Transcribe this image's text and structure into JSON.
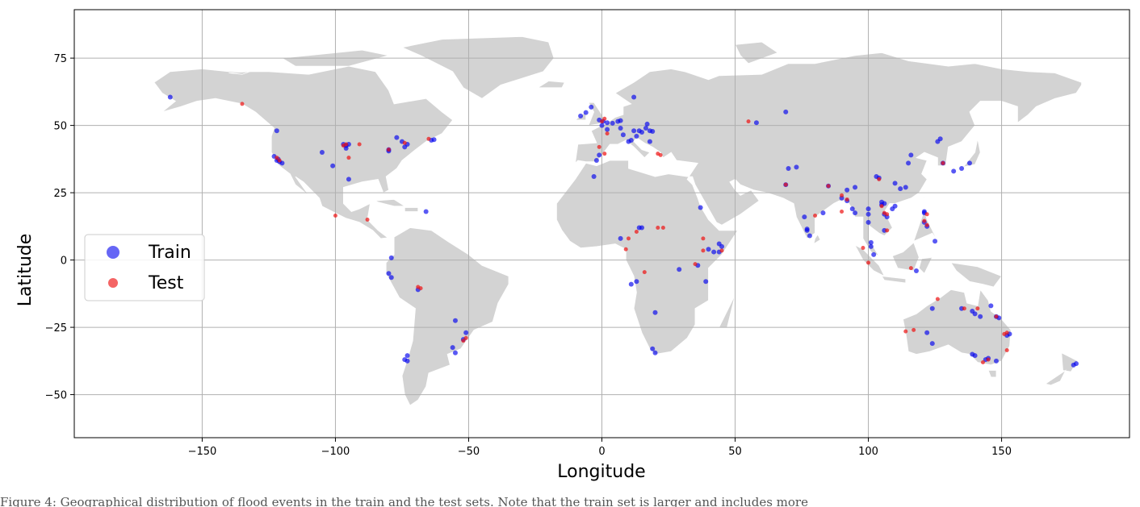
{
  "chart_data": {
    "type": "scatter",
    "title": "",
    "xlabel": "Longitude",
    "ylabel": "Latitude",
    "xlim": [
      -198,
      198
    ],
    "ylim": [
      -66,
      93
    ],
    "xticks": [
      -150,
      -100,
      -50,
      0,
      50,
      100,
      150
    ],
    "yticks": [
      -50,
      -25,
      0,
      25,
      50,
      75
    ],
    "xtick_labels": [
      "−150",
      "−100",
      "−50",
      "0",
      "50",
      "100",
      "150"
    ],
    "ytick_labels": [
      "−50",
      "−25",
      "0",
      "25",
      "50",
      "75"
    ],
    "grid": true,
    "legend_position": "center-left",
    "background_map": "world land masses (light gray) with white country borders",
    "colors": {
      "train": "#0000ee",
      "test": "#ee1111",
      "land": "#d3d3d3",
      "borders": "#ffffff",
      "grid": "#b0b0b0"
    },
    "series": [
      {
        "name": "Train",
        "color": "#0000ee",
        "points": [
          [
            -162,
            60.5
          ],
          [
            -122,
            48
          ],
          [
            -123,
            38.5
          ],
          [
            -121.5,
            37.5
          ],
          [
            -122,
            37
          ],
          [
            -121,
            36.5
          ],
          [
            -120,
            36
          ],
          [
            -105,
            40
          ],
          [
            -101,
            35
          ],
          [
            -97,
            43
          ],
          [
            -96,
            42.5
          ],
          [
            -95,
            43
          ],
          [
            -96,
            41.5
          ],
          [
            -95,
            30
          ],
          [
            -80,
            40.5
          ],
          [
            -80,
            41
          ],
          [
            -77,
            45.5
          ],
          [
            -75,
            44
          ],
          [
            -73,
            43
          ],
          [
            -74,
            42
          ],
          [
            -64,
            44.5
          ],
          [
            -63,
            44.7
          ],
          [
            -66,
            18
          ],
          [
            -79,
            0.8
          ],
          [
            -80,
            -5
          ],
          [
            -79,
            -6.5
          ],
          [
            -69,
            -11
          ],
          [
            -73,
            -35.5
          ],
          [
            -74,
            -37
          ],
          [
            -73,
            -37.5
          ],
          [
            -56,
            -32.5
          ],
          [
            -55,
            -34.5
          ],
          [
            -55,
            -22.5
          ],
          [
            -51,
            -27
          ],
          [
            -52,
            -29.5
          ],
          [
            -8,
            53.5
          ],
          [
            -6,
            54.8
          ],
          [
            -4,
            56.8
          ],
          [
            -1,
            52
          ],
          [
            0.5,
            51.5
          ],
          [
            2,
            51
          ],
          [
            0,
            50
          ],
          [
            -1,
            39
          ],
          [
            -2,
            37
          ],
          [
            -3,
            31
          ],
          [
            2,
            48.5
          ],
          [
            4,
            50.8
          ],
          [
            6,
            51.5
          ],
          [
            7,
            51.8
          ],
          [
            7,
            49
          ],
          [
            8,
            46.5
          ],
          [
            10,
            44
          ],
          [
            11,
            44.5
          ],
          [
            12,
            48
          ],
          [
            13,
            46
          ],
          [
            14,
            48
          ],
          [
            15,
            47.5
          ],
          [
            17,
            50.5
          ],
          [
            16.5,
            49
          ],
          [
            18,
            48
          ],
          [
            19,
            47.8
          ],
          [
            18,
            44
          ],
          [
            12,
            60.5
          ],
          [
            14,
            12
          ],
          [
            15,
            12
          ],
          [
            7,
            8
          ],
          [
            13,
            -8
          ],
          [
            11,
            -9
          ],
          [
            20,
            -19.5
          ],
          [
            19,
            -33
          ],
          [
            20,
            -34.5
          ],
          [
            29,
            -3.5
          ],
          [
            36,
            -2
          ],
          [
            39,
            -8
          ],
          [
            40,
            4
          ],
          [
            42,
            3
          ],
          [
            44,
            3
          ],
          [
            44,
            6
          ],
          [
            45,
            5
          ],
          [
            37,
            19.5
          ],
          [
            58,
            51
          ],
          [
            69,
            55
          ],
          [
            70,
            34
          ],
          [
            73,
            34.5
          ],
          [
            69,
            28
          ],
          [
            76,
            16
          ],
          [
            77,
            11.5
          ],
          [
            77,
            11
          ],
          [
            78,
            9
          ],
          [
            83,
            17.5
          ],
          [
            85,
            27.5
          ],
          [
            90,
            23
          ],
          [
            92,
            22
          ],
          [
            94,
            19
          ],
          [
            95,
            17.5
          ],
          [
            92,
            26
          ],
          [
            95,
            27
          ],
          [
            100,
            19
          ],
          [
            100,
            17
          ],
          [
            101,
            5
          ],
          [
            101,
            6.5
          ],
          [
            102,
            2
          ],
          [
            103,
            31
          ],
          [
            104,
            30.5
          ],
          [
            100,
            14
          ],
          [
            105,
            21.5
          ],
          [
            106,
            21
          ],
          [
            105,
            20.5
          ],
          [
            106,
            17
          ],
          [
            106,
            11
          ],
          [
            107,
            16
          ],
          [
            109,
            19
          ],
          [
            110,
            20
          ],
          [
            110,
            28.5
          ],
          [
            112,
            26.5
          ],
          [
            114,
            27
          ],
          [
            115,
            36
          ],
          [
            116,
            39
          ],
          [
            118,
            -4
          ],
          [
            121,
            17.5
          ],
          [
            121,
            14
          ],
          [
            121,
            18
          ],
          [
            122,
            12.5
          ],
          [
            125,
            7
          ],
          [
            126,
            44
          ],
          [
            127,
            45
          ],
          [
            128,
            36
          ],
          [
            132,
            33
          ],
          [
            135,
            34
          ],
          [
            138,
            36
          ],
          [
            122,
            -27
          ],
          [
            124,
            -31
          ],
          [
            124,
            -18
          ],
          [
            135,
            -18
          ],
          [
            139,
            -19
          ],
          [
            140,
            -20
          ],
          [
            142,
            -21
          ],
          [
            139,
            -35
          ],
          [
            140,
            -35.5
          ],
          [
            144,
            -37
          ],
          [
            145,
            -36.5
          ],
          [
            146,
            -17
          ],
          [
            148,
            -21
          ],
          [
            149,
            -21.5
          ],
          [
            148,
            -37.5
          ],
          [
            152,
            -28
          ],
          [
            153,
            -27.5
          ],
          [
            177,
            -39
          ],
          [
            178,
            -38.5
          ]
        ]
      },
      {
        "name": "Test",
        "color": "#ee1111",
        "points": [
          [
            -135,
            58
          ],
          [
            -122,
            38
          ],
          [
            -121,
            37
          ],
          [
            -95,
            38
          ],
          [
            -91,
            43
          ],
          [
            -96,
            43
          ],
          [
            -97,
            42.5
          ],
          [
            -100,
            16.5
          ],
          [
            -88,
            15
          ],
          [
            -80,
            41
          ],
          [
            -74,
            43.5
          ],
          [
            -65,
            45
          ],
          [
            -68,
            -10.5
          ],
          [
            -69,
            -10
          ],
          [
            -51,
            -29
          ],
          [
            -52,
            -30
          ],
          [
            -1,
            42
          ],
          [
            1,
            39.5
          ],
          [
            0,
            51.5
          ],
          [
            2,
            47
          ],
          [
            1,
            52.5
          ],
          [
            9,
            4
          ],
          [
            10,
            8
          ],
          [
            13,
            10.5
          ],
          [
            16,
            -4.5
          ],
          [
            21,
            39.5
          ],
          [
            22,
            39
          ],
          [
            21,
            12
          ],
          [
            23,
            12
          ],
          [
            35,
            -1.5
          ],
          [
            38,
            8
          ],
          [
            38,
            3.5
          ],
          [
            45,
            3.5
          ],
          [
            55,
            51.5
          ],
          [
            69,
            28
          ],
          [
            80,
            16.5
          ],
          [
            90,
            24
          ],
          [
            92,
            22.5
          ],
          [
            85,
            27.5
          ],
          [
            90,
            18
          ],
          [
            98,
            4.5
          ],
          [
            100,
            -1
          ],
          [
            104,
            30
          ],
          [
            105,
            20
          ],
          [
            106,
            17.5
          ],
          [
            107,
            17
          ],
          [
            107,
            11
          ],
          [
            116,
            -3
          ],
          [
            121,
            14.5
          ],
          [
            122,
            13
          ],
          [
            122,
            17
          ],
          [
            128,
            36
          ],
          [
            136,
            -18
          ],
          [
            141,
            -18
          ],
          [
            126,
            -14.5
          ],
          [
            114,
            -26.5
          ],
          [
            117,
            -26
          ],
          [
            143,
            -38
          ],
          [
            152,
            -27
          ],
          [
            151,
            -27.5
          ],
          [
            148,
            -21
          ],
          [
            145,
            -37
          ],
          [
            152,
            -33.5
          ]
        ]
      }
    ]
  },
  "figure_caption": "Figure 4: Geographical distribution of flood events in the train and the test sets. Note that the train set is larger and includes more"
}
